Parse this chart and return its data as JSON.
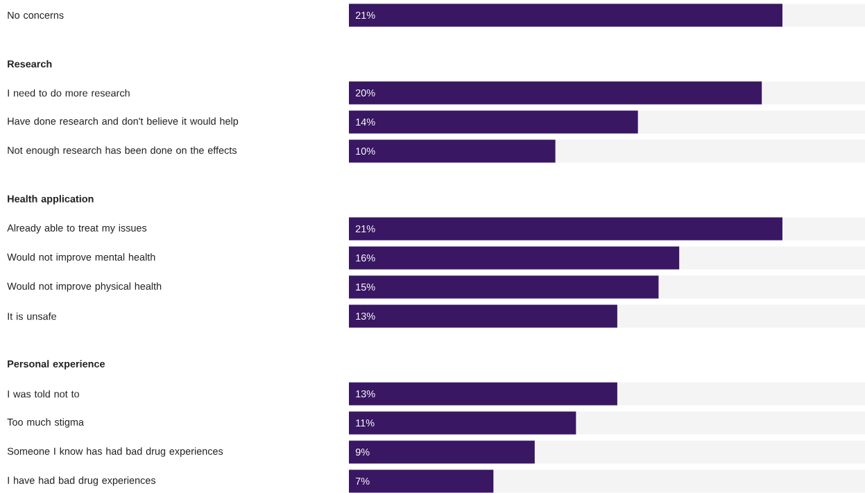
{
  "chart_data": {
    "type": "bar",
    "orientation": "horizontal",
    "categories": [
      "No concerns",
      "Research",
      "I need to do more research",
      "Have done research and don't believe it would help",
      "Not enough research has been done on the effects",
      "Health application",
      "Already able to treat my issues",
      "Would not improve mental health",
      "Would not improve physical health",
      "It is unsafe",
      "Personal experience",
      "I was told not to",
      "Too much stigma",
      "Someone I know has had bad drug experiences",
      "I have had bad drug experiences"
    ],
    "values": [
      21,
      null,
      20,
      14,
      10,
      null,
      21,
      16,
      15,
      13,
      null,
      13,
      11,
      9,
      7
    ],
    "value_labels": [
      "21%",
      null,
      "20%",
      "14%",
      "10%",
      null,
      "21%",
      "16%",
      "15%",
      "13%",
      null,
      "13%",
      "11%",
      "9%",
      "7%"
    ],
    "color": "#391763",
    "xlim": [
      0,
      25
    ]
  }
}
